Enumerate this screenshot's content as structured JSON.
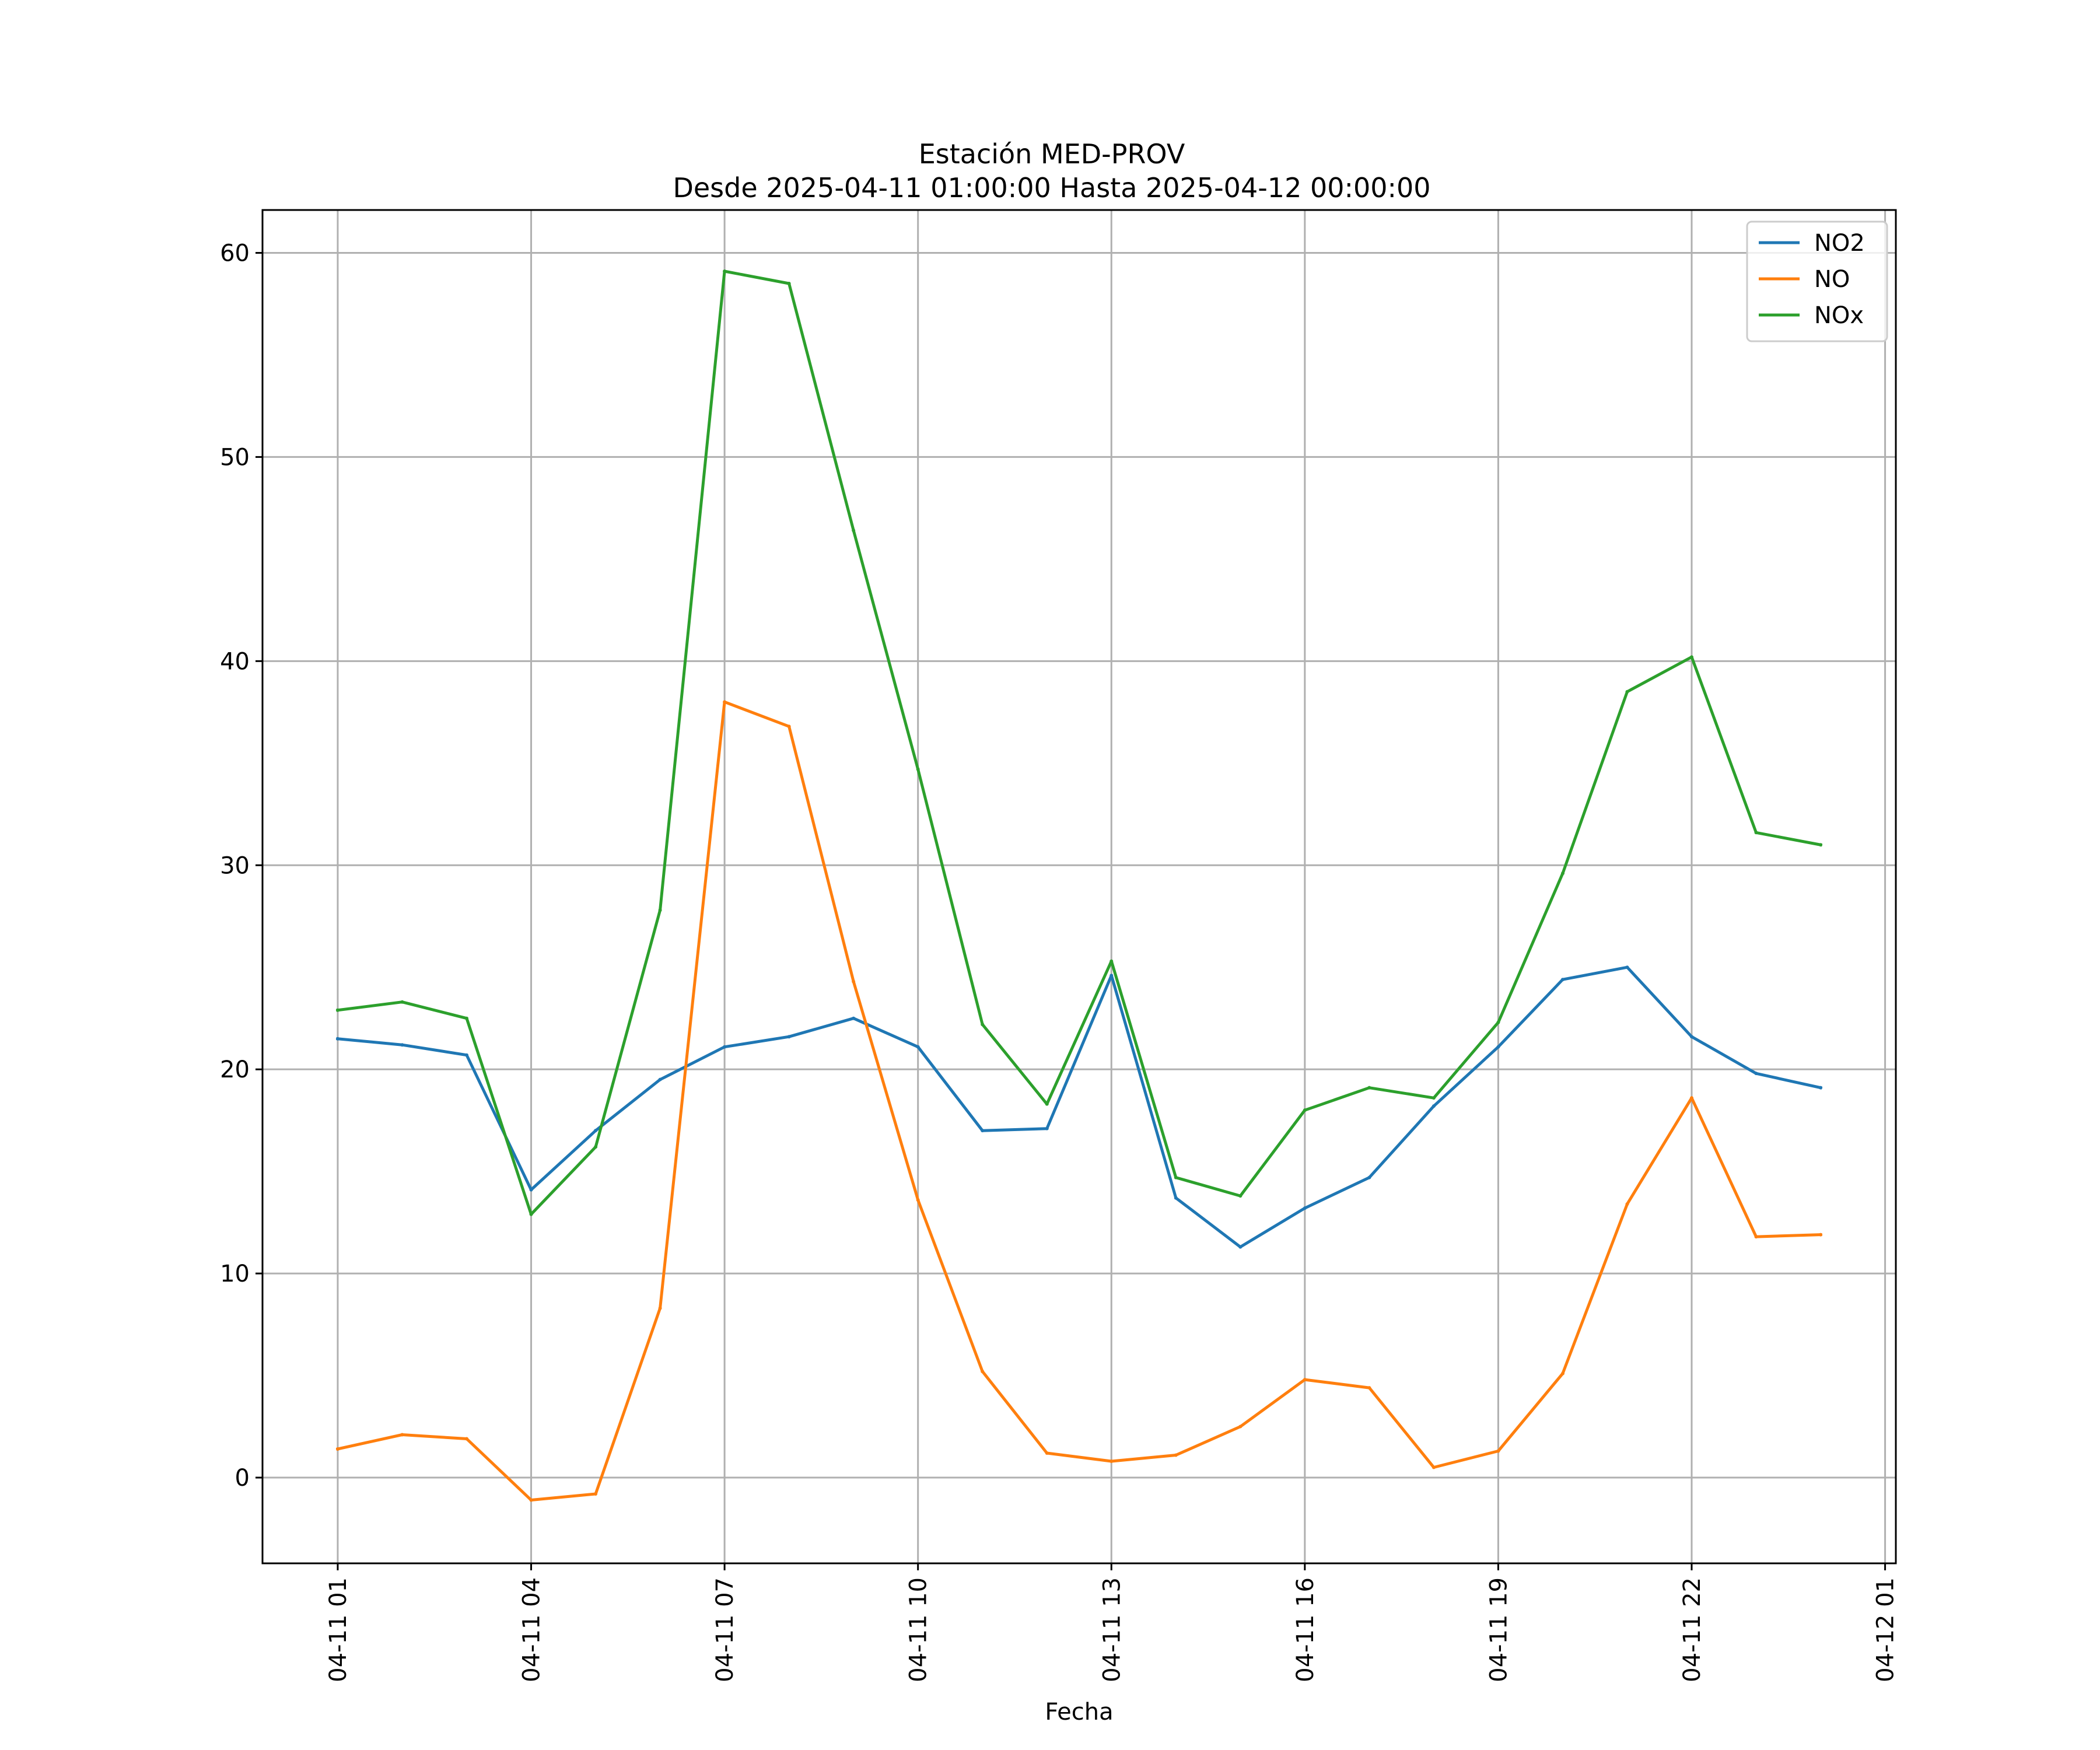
{
  "chart_data": {
    "type": "line",
    "title": "Estación MED-PROV",
    "subtitle": "Desde 2025-04-11 01:00:00 Hasta 2025-04-12 00:00:00",
    "xlabel": "Fecha",
    "ylabel": "",
    "x": [
      "2025-04-11 01:00",
      "2025-04-11 02:00",
      "2025-04-11 03:00",
      "2025-04-11 04:00",
      "2025-04-11 05:00",
      "2025-04-11 06:00",
      "2025-04-11 07:00",
      "2025-04-11 08:00",
      "2025-04-11 09:00",
      "2025-04-11 10:00",
      "2025-04-11 11:00",
      "2025-04-11 12:00",
      "2025-04-11 13:00",
      "2025-04-11 14:00",
      "2025-04-11 15:00",
      "2025-04-11 16:00",
      "2025-04-11 17:00",
      "2025-04-11 18:00",
      "2025-04-11 19:00",
      "2025-04-11 20:00",
      "2025-04-11 21:00",
      "2025-04-11 22:00",
      "2025-04-11 23:00",
      "2025-04-12 00:00"
    ],
    "series": [
      {
        "name": "NO2",
        "color": "#1f77b4",
        "values": [
          21.5,
          21.2,
          20.7,
          14.1,
          17.0,
          19.5,
          21.1,
          21.6,
          22.5,
          21.1,
          17.0,
          17.1,
          24.6,
          13.7,
          11.3,
          13.2,
          14.7,
          18.2,
          21.1,
          24.4,
          25.0,
          21.6,
          19.8,
          19.1
        ]
      },
      {
        "name": "NO",
        "color": "#ff7f0e",
        "values": [
          1.4,
          2.1,
          1.9,
          -1.1,
          -0.8,
          8.3,
          38.0,
          36.8,
          24.3,
          13.6,
          5.2,
          1.2,
          0.8,
          1.1,
          2.5,
          4.8,
          4.4,
          0.5,
          1.3,
          5.1,
          13.4,
          18.6,
          11.8,
          11.9
        ]
      },
      {
        "name": "NOx",
        "color": "#2ca02c",
        "values": [
          22.9,
          23.3,
          22.5,
          12.9,
          16.2,
          27.8,
          59.1,
          58.5,
          46.4,
          34.7,
          22.2,
          18.3,
          25.3,
          14.7,
          13.8,
          18.0,
          19.1,
          18.6,
          22.3,
          29.6,
          38.5,
          40.2,
          31.6,
          31.0
        ]
      }
    ],
    "xticks": [
      "04-11 01",
      "04-11 04",
      "04-11 07",
      "04-11 10",
      "04-11 13",
      "04-11 16",
      "04-11 19",
      "04-11 22",
      "04-12 01"
    ],
    "xtick_times": [
      "2025-04-11 01:00",
      "2025-04-11 04:00",
      "2025-04-11 07:00",
      "2025-04-11 10:00",
      "2025-04-11 13:00",
      "2025-04-11 16:00",
      "2025-04-11 19:00",
      "2025-04-11 22:00",
      "2025-04-12 01:00"
    ],
    "yticks": [
      0,
      10,
      20,
      30,
      40,
      50,
      60
    ],
    "xlim": [
      "2025-04-10 23:50",
      "2025-04-12 01:10"
    ],
    "ylim": [
      -4.2,
      62.1
    ],
    "grid": true,
    "legend_position": "top-right"
  }
}
